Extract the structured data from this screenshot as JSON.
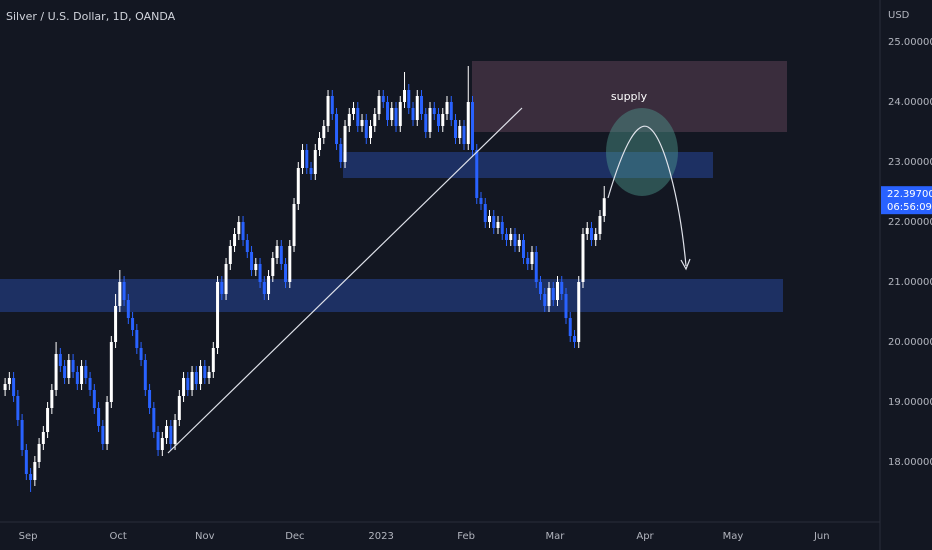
{
  "chart_data": {
    "type": "candlestick",
    "title": "Silver / U.S. Dollar, 1D, OANDA",
    "currency": "USD",
    "annotation": "supply",
    "up_color": "#ffffff",
    "down_color": "#2962ff",
    "grid": false,
    "ylim": [
      16.95,
      25.7
    ],
    "yticks": [
      {
        "value": 18,
        "label": "18.00000"
      },
      {
        "value": 19,
        "label": "19.00000"
      },
      {
        "value": 20,
        "label": "20.00000"
      },
      {
        "value": 21,
        "label": "21.00000"
      },
      {
        "value": 22,
        "label": "22.00000"
      },
      {
        "value": 23,
        "label": "23.00000"
      },
      {
        "value": 24,
        "label": "24.00000"
      },
      {
        "value": 25,
        "label": "25.00000"
      }
    ],
    "xlim": [
      -1.2,
      205.9
    ],
    "xticks": [
      {
        "value": 5.4,
        "label": "Sep"
      },
      {
        "value": 26.6,
        "label": "Oct"
      },
      {
        "value": 47,
        "label": "Nov"
      },
      {
        "value": 68.2,
        "label": "Dec"
      },
      {
        "value": 88.5,
        "label": "2023"
      },
      {
        "value": 108.5,
        "label": "Feb"
      },
      {
        "value": 129.4,
        "label": "Mar"
      },
      {
        "value": 150.6,
        "label": "Apr"
      },
      {
        "value": 171.3,
        "label": "May"
      },
      {
        "value": 192.2,
        "label": "Jun"
      }
    ],
    "last_price": {
      "value": 22.397,
      "label": "22.39700"
    },
    "countdown": "06:56:09",
    "candles": [
      [
        19.2,
        19.4,
        19.1,
        19.3
      ],
      [
        19.3,
        19.5,
        19.2,
        19.4
      ],
      [
        19.4,
        19.5,
        19.0,
        19.1
      ],
      [
        19.1,
        19.2,
        18.6,
        18.7
      ],
      [
        18.7,
        18.8,
        18.1,
        18.2
      ],
      [
        18.2,
        18.3,
        17.7,
        17.8
      ],
      [
        17.8,
        17.9,
        17.5,
        17.7
      ],
      [
        17.7,
        18.1,
        17.6,
        18.0
      ],
      [
        18.0,
        18.4,
        17.9,
        18.3
      ],
      [
        18.3,
        18.6,
        18.2,
        18.5
      ],
      [
        18.5,
        19.0,
        18.4,
        18.9
      ],
      [
        18.9,
        19.3,
        18.8,
        19.2
      ],
      [
        19.2,
        20.0,
        19.1,
        19.8
      ],
      [
        19.8,
        19.9,
        19.5,
        19.6
      ],
      [
        19.6,
        19.7,
        19.3,
        19.4
      ],
      [
        19.4,
        19.8,
        19.3,
        19.7
      ],
      [
        19.7,
        19.8,
        19.4,
        19.5
      ],
      [
        19.5,
        19.6,
        19.2,
        19.3
      ],
      [
        19.3,
        19.7,
        19.2,
        19.6
      ],
      [
        19.6,
        19.7,
        19.3,
        19.4
      ],
      [
        19.4,
        19.5,
        19.1,
        19.2
      ],
      [
        19.2,
        19.3,
        18.8,
        18.9
      ],
      [
        18.9,
        19.0,
        18.5,
        18.6
      ],
      [
        18.6,
        18.7,
        18.2,
        18.3
      ],
      [
        18.3,
        19.1,
        18.2,
        19.0
      ],
      [
        19.0,
        20.1,
        18.9,
        20.0
      ],
      [
        20.0,
        20.8,
        19.9,
        20.6
      ],
      [
        20.6,
        21.2,
        20.5,
        21.0
      ],
      [
        21.0,
        21.1,
        20.6,
        20.7
      ],
      [
        20.7,
        20.8,
        20.3,
        20.4
      ],
      [
        20.4,
        20.5,
        20.1,
        20.2
      ],
      [
        20.2,
        20.3,
        19.8,
        19.9
      ],
      [
        19.9,
        20.0,
        19.6,
        19.7
      ],
      [
        19.7,
        19.8,
        19.1,
        19.2
      ],
      [
        19.2,
        19.3,
        18.8,
        18.9
      ],
      [
        18.9,
        19.0,
        18.4,
        18.5
      ],
      [
        18.5,
        18.6,
        18.1,
        18.2
      ],
      [
        18.2,
        18.5,
        18.1,
        18.4
      ],
      [
        18.4,
        18.7,
        18.3,
        18.6
      ],
      [
        18.6,
        18.7,
        18.2,
        18.3
      ],
      [
        18.3,
        18.8,
        18.2,
        18.7
      ],
      [
        18.7,
        19.2,
        18.6,
        19.1
      ],
      [
        19.1,
        19.5,
        19.0,
        19.4
      ],
      [
        19.4,
        19.5,
        19.1,
        19.2
      ],
      [
        19.2,
        19.6,
        19.1,
        19.5
      ],
      [
        19.5,
        19.6,
        19.2,
        19.3
      ],
      [
        19.3,
        19.7,
        19.2,
        19.6
      ],
      [
        19.6,
        19.7,
        19.3,
        19.4
      ],
      [
        19.4,
        19.6,
        19.3,
        19.5
      ],
      [
        19.5,
        20.0,
        19.4,
        19.9
      ],
      [
        19.9,
        21.1,
        19.8,
        21.0
      ],
      [
        21.0,
        21.1,
        20.7,
        20.8
      ],
      [
        20.8,
        21.4,
        20.7,
        21.3
      ],
      [
        21.3,
        21.7,
        21.2,
        21.6
      ],
      [
        21.6,
        21.9,
        21.5,
        21.8
      ],
      [
        21.8,
        22.1,
        21.7,
        22.0
      ],
      [
        22.0,
        22.1,
        21.6,
        21.7
      ],
      [
        21.7,
        21.8,
        21.4,
        21.5
      ],
      [
        21.5,
        21.6,
        21.1,
        21.2
      ],
      [
        21.2,
        21.4,
        21.1,
        21.3
      ],
      [
        21.3,
        21.4,
        20.9,
        21.0
      ],
      [
        21.0,
        21.1,
        20.7,
        20.8
      ],
      [
        20.8,
        21.2,
        20.7,
        21.1
      ],
      [
        21.1,
        21.5,
        21.0,
        21.4
      ],
      [
        21.4,
        21.7,
        21.3,
        21.6
      ],
      [
        21.6,
        21.7,
        21.2,
        21.3
      ],
      [
        21.3,
        21.4,
        20.9,
        21.0
      ],
      [
        21.0,
        21.7,
        20.9,
        21.6
      ],
      [
        21.6,
        22.4,
        21.5,
        22.3
      ],
      [
        22.3,
        23.0,
        22.2,
        22.9
      ],
      [
        22.9,
        23.3,
        22.8,
        23.2
      ],
      [
        23.2,
        23.3,
        22.8,
        22.9
      ],
      [
        22.9,
        23.0,
        22.7,
        22.8
      ],
      [
        22.8,
        23.3,
        22.7,
        23.2
      ],
      [
        23.2,
        23.5,
        23.1,
        23.4
      ],
      [
        23.4,
        23.7,
        23.3,
        23.6
      ],
      [
        23.6,
        24.2,
        23.5,
        24.1
      ],
      [
        24.1,
        24.2,
        23.7,
        23.8
      ],
      [
        23.8,
        23.9,
        23.2,
        23.3
      ],
      [
        23.3,
        23.4,
        22.9,
        23.0
      ],
      [
        23.0,
        23.7,
        22.9,
        23.6
      ],
      [
        23.6,
        23.9,
        23.5,
        23.8
      ],
      [
        23.8,
        24.0,
        23.7,
        23.9
      ],
      [
        23.9,
        24.0,
        23.5,
        23.6
      ],
      [
        23.6,
        23.8,
        23.5,
        23.7
      ],
      [
        23.7,
        23.8,
        23.3,
        23.4
      ],
      [
        23.4,
        23.7,
        23.3,
        23.6
      ],
      [
        23.6,
        23.9,
        23.5,
        23.8
      ],
      [
        23.8,
        24.2,
        23.7,
        24.1
      ],
      [
        24.1,
        24.2,
        23.9,
        24.0
      ],
      [
        24.0,
        24.1,
        23.6,
        23.7
      ],
      [
        23.7,
        24.0,
        23.6,
        23.9
      ],
      [
        23.9,
        24.0,
        23.5,
        23.6
      ],
      [
        23.6,
        24.1,
        23.5,
        24.0
      ],
      [
        24.0,
        24.5,
        23.9,
        24.2
      ],
      [
        24.2,
        24.3,
        23.8,
        23.9
      ],
      [
        23.9,
        24.0,
        23.6,
        23.7
      ],
      [
        23.7,
        24.2,
        23.6,
        24.1
      ],
      [
        24.1,
        24.2,
        23.7,
        23.8
      ],
      [
        23.8,
        23.9,
        23.4,
        23.5
      ],
      [
        23.5,
        24.0,
        23.4,
        23.9
      ],
      [
        23.9,
        24.0,
        23.7,
        23.8
      ],
      [
        23.8,
        23.9,
        23.5,
        23.6
      ],
      [
        23.6,
        23.9,
        23.5,
        23.8
      ],
      [
        23.8,
        24.1,
        23.7,
        24.0
      ],
      [
        24.0,
        24.1,
        23.6,
        23.7
      ],
      [
        23.7,
        23.8,
        23.3,
        23.4
      ],
      [
        23.4,
        23.7,
        23.3,
        23.6
      ],
      [
        23.6,
        23.7,
        23.2,
        23.3
      ],
      [
        23.3,
        24.6,
        23.2,
        24.0
      ],
      [
        24.0,
        24.1,
        23.1,
        23.2
      ],
      [
        23.2,
        23.3,
        22.3,
        22.4
      ],
      [
        22.4,
        22.5,
        22.2,
        22.3
      ],
      [
        22.3,
        22.4,
        21.9,
        22.0
      ],
      [
        22.0,
        22.2,
        21.9,
        22.1
      ],
      [
        22.1,
        22.2,
        21.8,
        21.9
      ],
      [
        21.9,
        22.1,
        21.8,
        22.0
      ],
      [
        22.0,
        22.1,
        21.7,
        21.8
      ],
      [
        21.8,
        21.9,
        21.6,
        21.7
      ],
      [
        21.7,
        21.9,
        21.6,
        21.8
      ],
      [
        21.8,
        21.9,
        21.5,
        21.6
      ],
      [
        21.6,
        21.8,
        21.5,
        21.7
      ],
      [
        21.7,
        21.8,
        21.3,
        21.4
      ],
      [
        21.4,
        21.5,
        21.2,
        21.3
      ],
      [
        21.3,
        21.6,
        21.2,
        21.5
      ],
      [
        21.5,
        21.6,
        20.9,
        21.0
      ],
      [
        21.0,
        21.1,
        20.7,
        20.8
      ],
      [
        20.8,
        20.9,
        20.5,
        20.6
      ],
      [
        20.6,
        21.0,
        20.5,
        20.9
      ],
      [
        20.9,
        21.0,
        20.6,
        20.7
      ],
      [
        20.7,
        21.1,
        20.6,
        21.0
      ],
      [
        21.0,
        21.1,
        20.7,
        20.8
      ],
      [
        20.8,
        20.9,
        20.3,
        20.4
      ],
      [
        20.4,
        20.5,
        20.0,
        20.1
      ],
      [
        20.1,
        20.2,
        19.9,
        20.0
      ],
      [
        20.0,
        21.1,
        19.9,
        21.0
      ],
      [
        21.0,
        21.9,
        20.9,
        21.8
      ],
      [
        21.8,
        22.0,
        21.7,
        21.9
      ],
      [
        21.9,
        22.0,
        21.6,
        21.7
      ],
      [
        21.7,
        21.9,
        21.6,
        21.8
      ],
      [
        21.8,
        22.2,
        21.7,
        22.1
      ],
      [
        22.1,
        22.6,
        22.0,
        22.397
      ]
    ]
  }
}
